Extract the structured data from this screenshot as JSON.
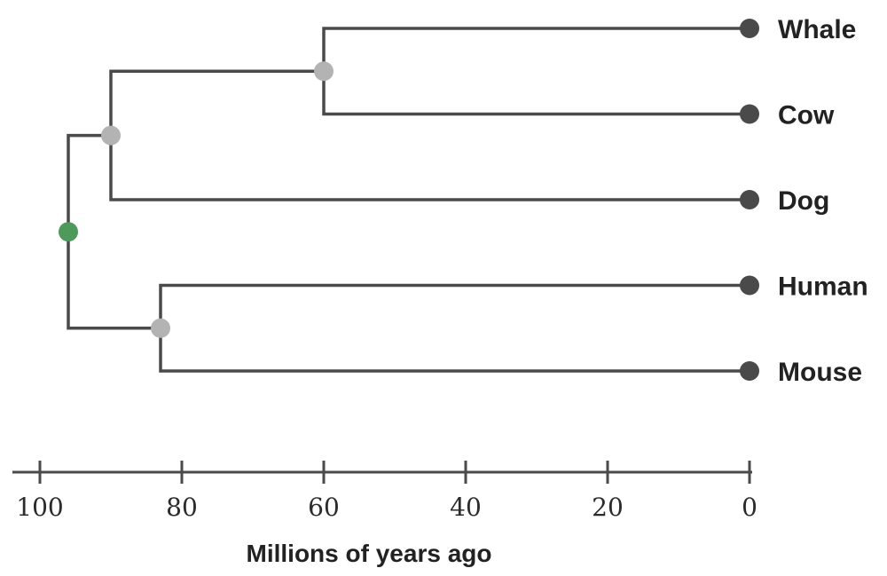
{
  "chart_data": {
    "type": "phylogenetic-tree",
    "xlabel": "Millions of years ago",
    "x_range": [
      100,
      0
    ],
    "x_ticks": [
      100,
      80,
      60,
      40,
      20,
      0
    ],
    "taxa": [
      {
        "name": "Whale",
        "age": 0
      },
      {
        "name": "Cow",
        "age": 0
      },
      {
        "name": "Dog",
        "age": 0
      },
      {
        "name": "Human",
        "age": 0
      },
      {
        "name": "Mouse",
        "age": 0
      }
    ],
    "nodes": [
      {
        "id": "root",
        "age": 96,
        "children": [
          "laurasiatheria",
          "euarchontoglires"
        ],
        "color": "#4e9a5a"
      },
      {
        "id": "laurasiatheria",
        "age": 90,
        "children": [
          "cetartiodactyla",
          "Dog"
        ],
        "color": "#b3b3b3"
      },
      {
        "id": "cetartiodactyla",
        "age": 60,
        "children": [
          "Whale",
          "Cow"
        ],
        "color": "#b3b3b3"
      },
      {
        "id": "euarchontoglires",
        "age": 83,
        "children": [
          "Human",
          "Mouse"
        ],
        "color": "#b3b3b3"
      }
    ],
    "leaf_color": "#4a4a4a",
    "branch_color": "#4a4a4a"
  }
}
